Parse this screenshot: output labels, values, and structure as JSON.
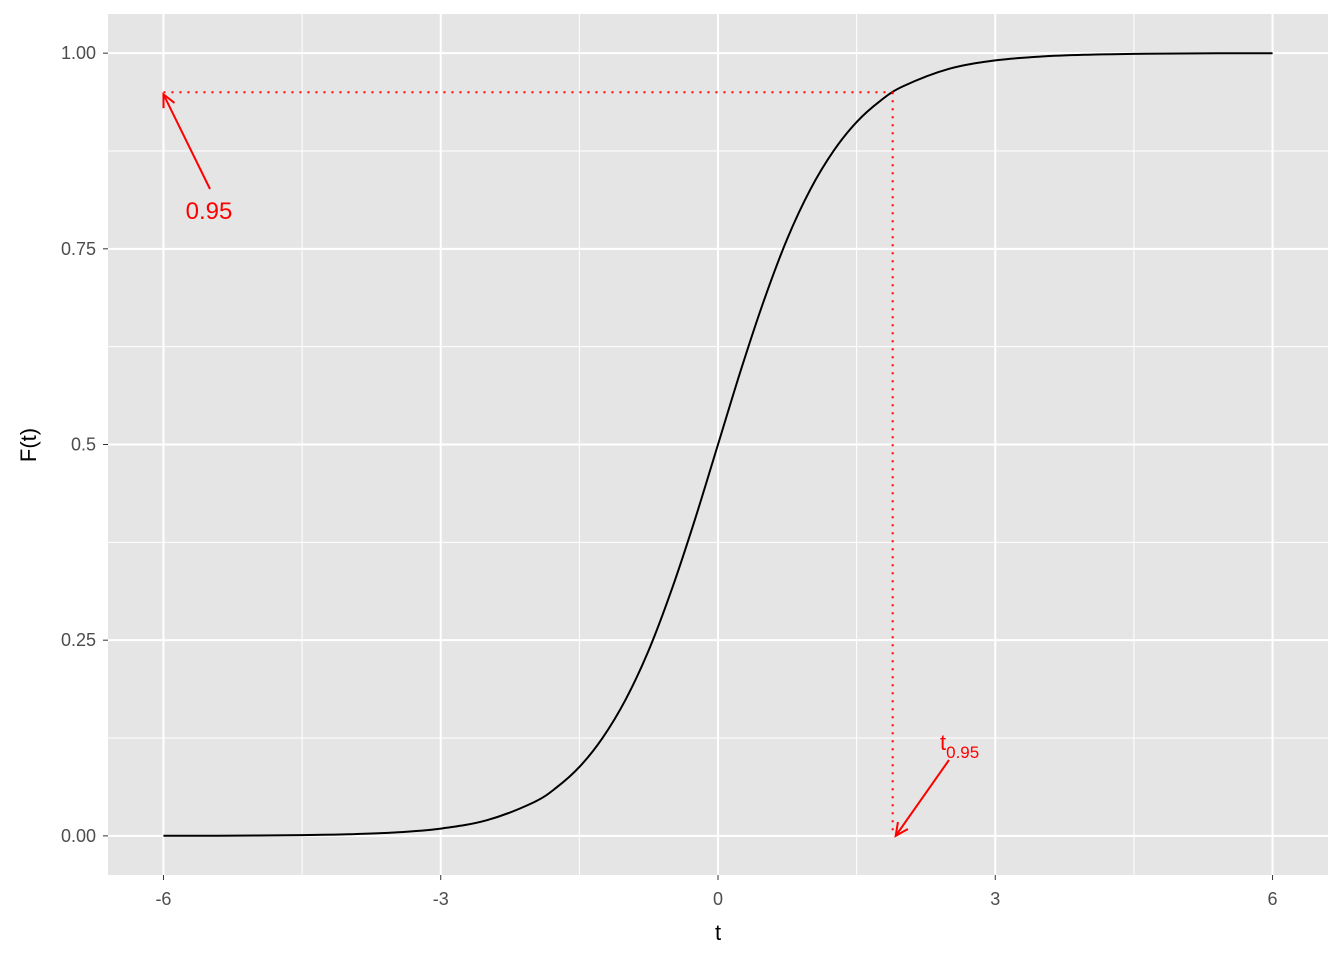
{
  "chart_data": {
    "type": "line",
    "xlabel": "t",
    "ylabel": "F(t)",
    "xlim": [
      -6.6,
      6.6
    ],
    "ylim": [
      -0.05,
      1.05
    ],
    "x_ticks": [
      -6,
      -3,
      0,
      3,
      6
    ],
    "x_tick_labels": [
      "-6",
      "-3",
      "0",
      "3",
      "6"
    ],
    "y_ticks": [
      0,
      0.25,
      0.5,
      0.75,
      1
    ],
    "y_tick_labels": [
      "0.00",
      "0.25",
      "0.5",
      "0.75",
      "1.00"
    ],
    "grid": true,
    "panel_background": "#E5E5E5",
    "series": [
      {
        "color": "#000000",
        "x": [
          -6,
          -5.5,
          -5,
          -4.5,
          -4,
          -3.5,
          -3,
          -2.5,
          -2,
          -1.75,
          -1.5,
          -1.25,
          -1,
          -0.75,
          -0.5,
          -0.25,
          0,
          0.25,
          0.5,
          0.75,
          1,
          1.25,
          1.5,
          1.75,
          2,
          2.5,
          3,
          3.5,
          4,
          4.5,
          5,
          5.5,
          6
        ],
        "y": [
          0.0001,
          0.0002,
          0.0004,
          0.0009,
          0.002,
          0.0043,
          0.0093,
          0.02,
          0.0425,
          0.0615,
          0.088,
          0.125,
          0.174,
          0.237,
          0.315,
          0.404,
          0.5,
          0.596,
          0.685,
          0.763,
          0.826,
          0.875,
          0.912,
          0.9385,
          0.9575,
          0.98,
          0.9907,
          0.9957,
          0.998,
          0.9991,
          0.9996,
          0.9998,
          0.9999
        ]
      }
    ],
    "annotations": {
      "color": "#FF0000",
      "quantile_level": 0.95,
      "quantile_value": 1.89,
      "level_label": "0.95",
      "quantile_label_main": "t",
      "quantile_label_sub": "0.95"
    }
  }
}
